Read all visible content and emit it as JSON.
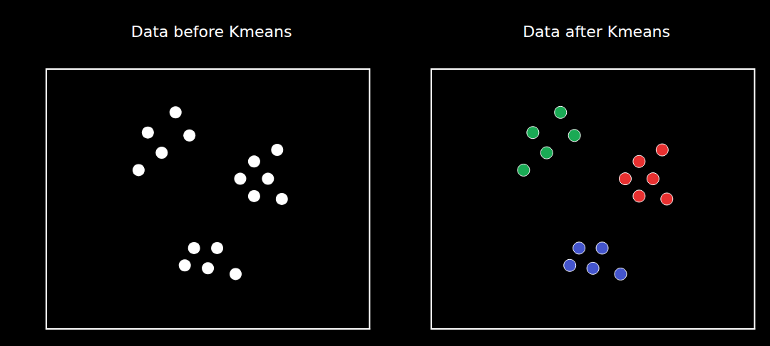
{
  "chart_data": [
    {
      "type": "scatter",
      "title": "Data before Kmeans",
      "series": [
        {
          "color": "#ffffff",
          "x": [
            2.8,
            2.2,
            3.1,
            2.5,
            2.0,
            4.5,
            5.0,
            4.2,
            4.8,
            4.5,
            5.1,
            3.2,
            3.7,
            3.0,
            3.5,
            4.1
          ],
          "values": [
            8.5,
            7.8,
            7.7,
            7.1,
            6.5,
            6.8,
            7.2,
            6.2,
            6.2,
            5.6,
            5.5,
            3.8,
            3.8,
            3.2,
            3.1,
            2.9
          ]
        }
      ],
      "xlim": [
        0,
        7
      ],
      "ylim": [
        1,
        10
      ],
      "tick_labels": false,
      "grid": false
    },
    {
      "type": "scatter",
      "title": "Data after Kmeans",
      "series": [
        {
          "color": "#1aaa55",
          "x": [
            2.8,
            2.2,
            3.1,
            2.5,
            2.0
          ],
          "values": [
            8.5,
            7.8,
            7.7,
            7.1,
            6.5
          ]
        },
        {
          "color": "#e83030",
          "x": [
            4.5,
            5.0,
            4.2,
            4.8,
            4.5,
            5.1
          ],
          "values": [
            6.8,
            7.2,
            6.2,
            6.2,
            5.6,
            5.5
          ]
        },
        {
          "color": "#4455cc",
          "x": [
            3.2,
            3.7,
            3.0,
            3.5,
            4.1
          ],
          "values": [
            3.8,
            3.8,
            3.2,
            3.1,
            2.9
          ]
        }
      ],
      "xlim": [
        0,
        7
      ],
      "ylim": [
        1,
        10
      ],
      "tick_labels": false,
      "grid": false
    }
  ]
}
